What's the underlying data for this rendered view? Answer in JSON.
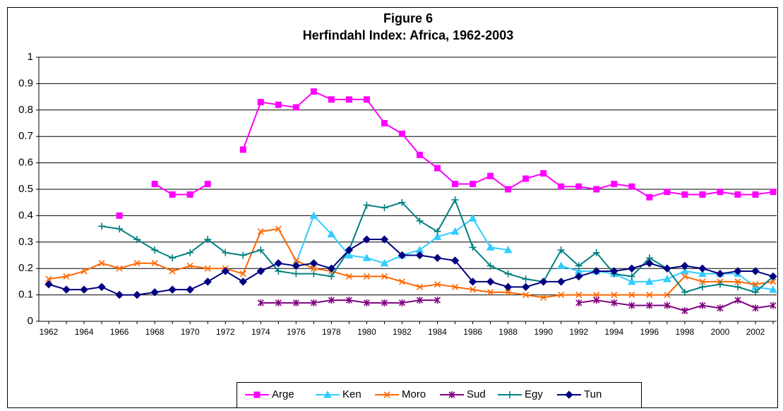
{
  "chart_data": {
    "type": "line",
    "title": "Figure 6",
    "subtitle": "Herfindahl Index: Africa, 1962-2003",
    "categories": [
      "1962",
      null,
      "1964",
      null,
      "1966",
      null,
      "1968",
      null,
      "1970",
      null,
      "1972",
      null,
      "1974",
      null,
      "1976",
      null,
      "1978",
      null,
      "1980",
      null,
      "1982",
      null,
      "1984",
      null,
      "1986",
      null,
      "1988",
      null,
      "1990",
      null,
      "1992",
      null,
      "1994",
      null,
      "1996",
      null,
      "1998",
      null,
      "2000",
      null,
      "2002",
      null
    ],
    "ylim": [
      0,
      1
    ],
    "yticks": [
      0,
      0.1,
      0.2,
      0.3,
      0.4,
      0.5,
      0.6,
      0.7,
      0.8,
      0.9,
      1
    ],
    "grid": true,
    "legend": "bottom",
    "series": [
      {
        "name": "Arge",
        "color": "#ff00ff",
        "marker": "square",
        "values": [
          null,
          null,
          null,
          null,
          0.4,
          null,
          0.52,
          0.48,
          0.48,
          0.52,
          null,
          0.65,
          0.83,
          0.82,
          0.81,
          0.87,
          0.84,
          0.84,
          0.84,
          0.75,
          0.71,
          0.63,
          0.58,
          0.52,
          0.52,
          0.55,
          0.5,
          0.54,
          0.56,
          0.51,
          0.51,
          0.5,
          0.52,
          0.51,
          0.47,
          0.49,
          0.48,
          0.48,
          0.49,
          0.48,
          0.48,
          0.49
        ]
      },
      {
        "name": "Ken",
        "color": "#33ccff",
        "marker": "triangle",
        "values": [
          null,
          null,
          null,
          null,
          null,
          null,
          null,
          null,
          null,
          null,
          null,
          null,
          null,
          null,
          0.22,
          0.4,
          0.33,
          0.25,
          0.24,
          0.22,
          0.25,
          0.27,
          0.32,
          0.34,
          0.39,
          0.28,
          0.27,
          null,
          null,
          0.21,
          0.19,
          0.19,
          0.18,
          0.15,
          0.15,
          0.16,
          0.19,
          0.18,
          0.18,
          0.18,
          0.13,
          0.12
        ]
      },
      {
        "name": "Moro",
        "color": "#ff6600",
        "marker": "x",
        "values": [
          0.16,
          0.17,
          0.19,
          0.22,
          0.2,
          0.22,
          0.22,
          0.19,
          0.21,
          0.2,
          0.2,
          0.18,
          0.34,
          0.35,
          0.23,
          0.2,
          0.19,
          0.17,
          0.17,
          0.17,
          0.15,
          0.13,
          0.14,
          0.13,
          0.12,
          0.11,
          0.11,
          0.1,
          0.09,
          0.1,
          0.1,
          0.1,
          0.1,
          0.1,
          0.1,
          0.1,
          0.17,
          0.15,
          0.15,
          0.15,
          0.14,
          0.15
        ]
      },
      {
        "name": "Sud",
        "color": "#800080",
        "marker": "asterisk",
        "values": [
          null,
          null,
          null,
          null,
          null,
          null,
          null,
          null,
          null,
          null,
          null,
          null,
          0.07,
          0.07,
          0.07,
          0.07,
          0.08,
          0.08,
          0.07,
          0.07,
          0.07,
          0.08,
          0.08,
          null,
          null,
          null,
          null,
          null,
          null,
          null,
          0.07,
          0.08,
          0.07,
          0.06,
          0.06,
          0.06,
          0.04,
          0.06,
          0.05,
          0.08,
          0.05,
          0.06
        ]
      },
      {
        "name": "Egy",
        "color": "#008080",
        "marker": "plus",
        "values": [
          null,
          null,
          null,
          0.36,
          0.35,
          0.31,
          0.27,
          0.24,
          0.26,
          0.31,
          0.26,
          0.25,
          0.27,
          0.19,
          0.18,
          0.18,
          0.17,
          0.27,
          0.44,
          0.43,
          0.45,
          0.38,
          0.34,
          0.46,
          0.28,
          0.21,
          0.18,
          0.16,
          0.15,
          0.27,
          0.21,
          0.26,
          0.18,
          0.17,
          0.24,
          0.2,
          0.11,
          0.13,
          0.14,
          0.13,
          0.11,
          0.17
        ]
      },
      {
        "name": "Tun",
        "color": "#000080",
        "marker": "diamond",
        "values": [
          0.14,
          0.12,
          0.12,
          0.13,
          0.1,
          0.1,
          0.11,
          0.12,
          0.12,
          0.15,
          0.19,
          0.15,
          0.19,
          0.22,
          0.21,
          0.22,
          0.2,
          0.27,
          0.31,
          0.31,
          0.25,
          0.25,
          0.24,
          0.23,
          0.15,
          0.15,
          0.13,
          0.13,
          0.15,
          0.15,
          0.17,
          0.19,
          0.19,
          0.2,
          0.22,
          0.2,
          0.21,
          0.2,
          0.18,
          0.19,
          0.19,
          0.17
        ]
      }
    ]
  }
}
